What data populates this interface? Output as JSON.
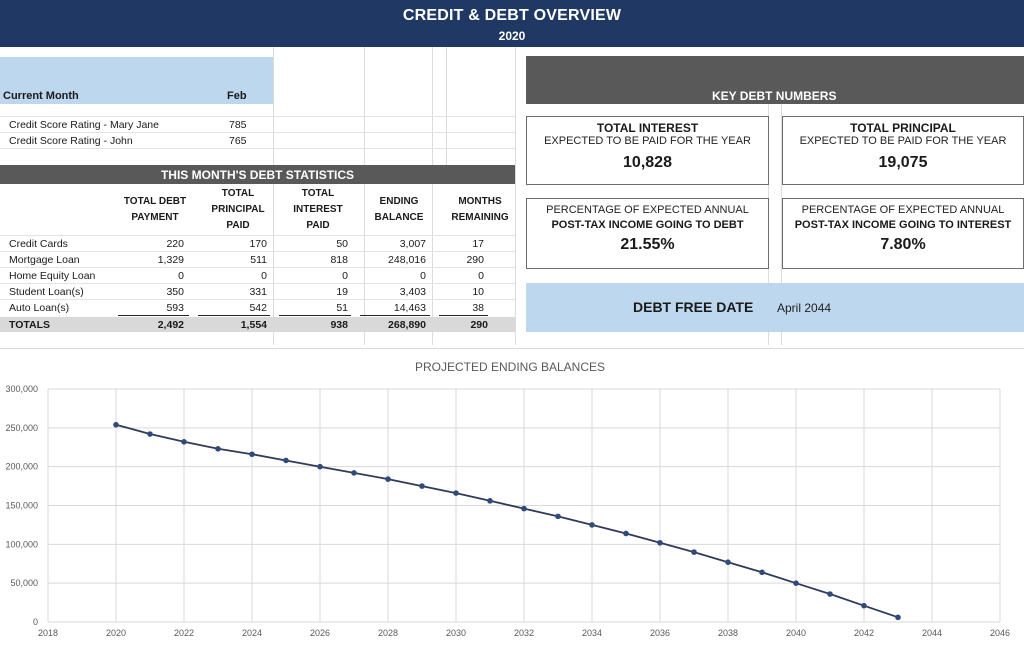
{
  "header": {
    "title": "CREDIT & DEBT OVERVIEW",
    "year": "2020"
  },
  "current_month": {
    "label": "Current Month",
    "value": "Feb"
  },
  "credit_scores": [
    {
      "label": "Credit Score Rating - Mary Jane",
      "value": "785"
    },
    {
      "label": "Credit Score Rating - John",
      "value": "765"
    }
  ],
  "stats": {
    "title": "THIS MONTH'S DEBT STATISTICS",
    "headers": [
      [
        "TOTAL DEBT",
        "PAYMENT"
      ],
      [
        "TOTAL",
        "PRINCIPAL",
        "PAID"
      ],
      [
        "TOTAL",
        "INTEREST",
        "PAID"
      ],
      [
        "ENDING",
        "BALANCE"
      ],
      [
        "MONTHS",
        "REMAINING"
      ]
    ],
    "rows": [
      {
        "label": "Credit Cards",
        "values": [
          "220",
          "170",
          "50",
          "3,007",
          "17"
        ]
      },
      {
        "label": "Mortgage Loan",
        "values": [
          "1,329",
          "511",
          "818",
          "248,016",
          "290"
        ]
      },
      {
        "label": "Home Equity Loan",
        "values": [
          "0",
          "0",
          "0",
          "0",
          "0"
        ]
      },
      {
        "label": "Student Loan(s)",
        "values": [
          "350",
          "331",
          "19",
          "3,403",
          "10"
        ]
      },
      {
        "label": "Auto Loan(s)",
        "values": [
          "593",
          "542",
          "51",
          "14,463",
          "38"
        ]
      }
    ],
    "totals": {
      "label": "TOTALS",
      "values": [
        "2,492",
        "1,554",
        "938",
        "268,890",
        "290"
      ]
    }
  },
  "key_numbers": {
    "title": "KEY DEBT NUMBERS",
    "total_interest": {
      "title": "TOTAL INTEREST",
      "subtitle": "EXPECTED TO BE PAID FOR THE YEAR",
      "value": "10,828"
    },
    "total_principal": {
      "title": "TOTAL PRINCIPAL",
      "subtitle": "EXPECTED TO BE PAID FOR THE YEAR",
      "value": "19,075"
    },
    "pct_debt": {
      "line1": "PERCENTAGE OF EXPECTED ANNUAL",
      "line2": "POST-TAX INCOME GOING TO DEBT",
      "value": "21.55%"
    },
    "pct_interest": {
      "line1": "PERCENTAGE OF EXPECTED ANNUAL",
      "line2": "POST-TAX INCOME GOING TO INTEREST",
      "value": "7.80%"
    }
  },
  "debt_free": {
    "label": "DEBT FREE DATE",
    "value": "April 2044"
  },
  "colors": {
    "header": "#1f3864",
    "light_blue": "#bdd7ee",
    "dark_gray": "#595959",
    "line": "#2f3b5c"
  },
  "chart_data": {
    "type": "line",
    "title": "PROJECTED ENDING BALANCES",
    "xlim": [
      2018,
      2046
    ],
    "ylim": [
      0,
      300000
    ],
    "x_ticks": [
      "2018",
      "2020",
      "2022",
      "2024",
      "2026",
      "2028",
      "2030",
      "2032",
      "2034",
      "2036",
      "2038",
      "2040",
      "2042",
      "2044",
      "2046"
    ],
    "y_ticks": [
      "0",
      "50,000",
      "100,000",
      "150,000",
      "200,000",
      "250,000",
      "300,000"
    ],
    "grid": true,
    "series": [
      {
        "x": [
          2020,
          2021,
          2022,
          2023,
          2024,
          2025,
          2026,
          2027,
          2028,
          2029,
          2030,
          2031,
          2032,
          2033,
          2034,
          2035,
          2036,
          2037,
          2038,
          2039,
          2040,
          2041,
          2042,
          2043
        ],
        "values": [
          254000,
          242000,
          232000,
          223000,
          216000,
          208000,
          200000,
          192000,
          184000,
          175000,
          166000,
          156000,
          146000,
          136000,
          125000,
          114000,
          102000,
          90000,
          77000,
          64000,
          50000,
          36000,
          21000,
          6000
        ]
      }
    ]
  }
}
